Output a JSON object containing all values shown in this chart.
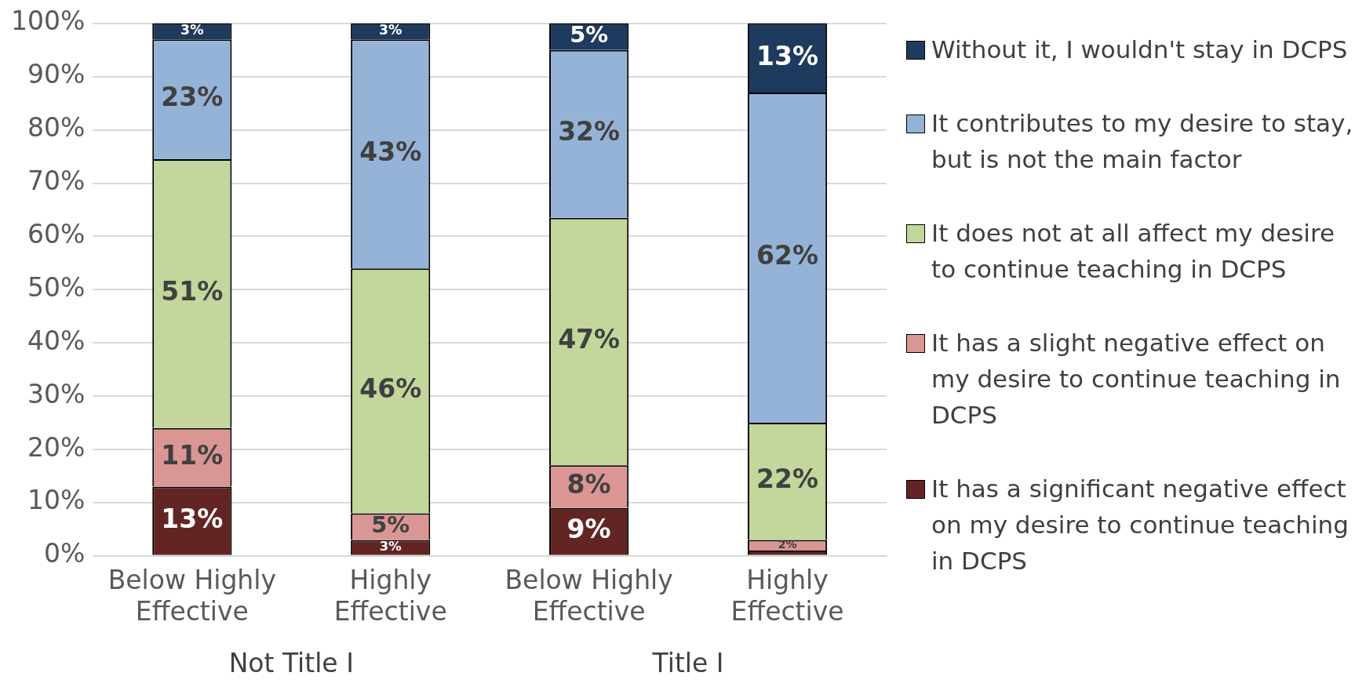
{
  "chart_data": {
    "type": "bar",
    "stacked": true,
    "categories": [
      "Below Highly Effective",
      "Highly Effective",
      "Below Highly Effective",
      "Highly Effective"
    ],
    "series": [
      {
        "name": "It has a significant negative effect on my desire to continue teaching in DCPS",
        "color": "#632523",
        "values": [
          13,
          3,
          9,
          1
        ],
        "value_labels": [
          "13%",
          "3%",
          "9%",
          null
        ]
      },
      {
        "name": "It has a slight negative effect on my desire to continue teaching in DCPS",
        "color": "#d99694",
        "values": [
          11,
          5,
          8,
          2
        ],
        "value_labels": [
          "11%",
          "5%",
          "8%",
          "2%"
        ]
      },
      {
        "name": "It does not at all affect my desire to continue teaching in DCPS",
        "color": "#c3d69b",
        "values": [
          50.5,
          46,
          46.5,
          22
        ],
        "value_labels": [
          "51%",
          "46%",
          "47%",
          "22%"
        ]
      },
      {
        "name": "It contributes to my desire to stay, but is not the main factor",
        "color": "#95b3d7",
        "values": [
          22.5,
          43,
          31.5,
          62
        ],
        "value_labels": [
          "23%",
          "43%",
          "32%",
          "62%"
        ]
      },
      {
        "name": "Without it, I wouldn't stay in DCPS",
        "color": "#1f3a5f",
        "values": [
          3,
          3,
          5,
          13
        ],
        "value_labels": [
          "3%",
          "3%",
          "5%",
          "13%"
        ]
      }
    ],
    "annotations": [
      "Not Title I",
      "Title I"
    ],
    "ylim": [
      0,
      100
    ],
    "yticks": [
      {
        "value": 0,
        "label": "0%"
      },
      {
        "value": 10,
        "label": "10%"
      },
      {
        "value": 20,
        "label": "20%"
      },
      {
        "value": 30,
        "label": "30%"
      },
      {
        "value": 40,
        "label": "40%"
      },
      {
        "value": 50,
        "label": "50%"
      },
      {
        "value": 60,
        "label": "60%"
      },
      {
        "value": 70,
        "label": "70%"
      },
      {
        "value": 80,
        "label": "80%"
      },
      {
        "value": 90,
        "label": "90%"
      },
      {
        "value": 100,
        "label": "100%"
      }
    ],
    "grid": "y",
    "legend": "right"
  }
}
